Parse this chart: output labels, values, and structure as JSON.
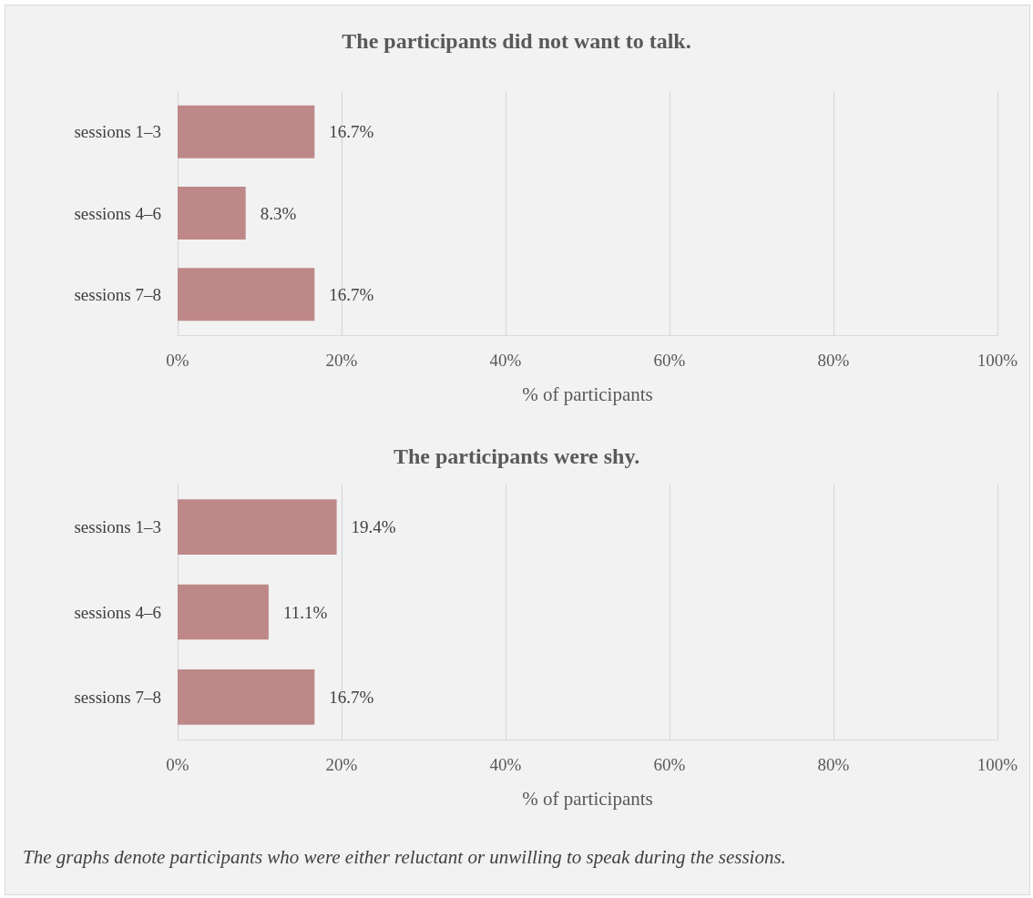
{
  "chart_data": [
    {
      "type": "bar",
      "orientation": "horizontal",
      "title": "The participants did not want to talk.",
      "xlabel": "% of participants",
      "categories": [
        "sessions 1–3",
        "sessions 4–6",
        "sessions 7–8"
      ],
      "series": [
        {
          "color": "#be8889",
          "values": [
            16.7,
            8.3,
            16.7
          ],
          "value_labels": [
            "16.7%",
            "8.3%",
            "16.7%"
          ]
        }
      ],
      "xlim": [
        0,
        100
      ],
      "xticks": [
        {
          "value": 0,
          "label": "0%"
        },
        {
          "value": 20,
          "label": "20%"
        },
        {
          "value": 40,
          "label": "40%"
        },
        {
          "value": 60,
          "label": "60%"
        },
        {
          "value": 80,
          "label": "80%"
        },
        {
          "value": 100,
          "label": "100%"
        }
      ],
      "grid": "x"
    },
    {
      "type": "bar",
      "orientation": "horizontal",
      "title": "The participants were shy.",
      "xlabel": "% of participants",
      "categories": [
        "sessions 1–3",
        "sessions 4–6",
        "sessions 7–8"
      ],
      "series": [
        {
          "color": "#be8889",
          "values": [
            19.4,
            11.1,
            16.7
          ],
          "value_labels": [
            "19.4%",
            "11.1%",
            "16.7%"
          ]
        }
      ],
      "xlim": [
        0,
        100
      ],
      "xticks": [
        {
          "value": 0,
          "label": "0%"
        },
        {
          "value": 20,
          "label": "20%"
        },
        {
          "value": 40,
          "label": "40%"
        },
        {
          "value": 60,
          "label": "60%"
        },
        {
          "value": 80,
          "label": "80%"
        },
        {
          "value": 100,
          "label": "100%"
        }
      ],
      "grid": "x",
      "annotations": [
        "The graphs denote participants who were either reluctant or unwilling to speak during the sessions."
      ]
    }
  ]
}
